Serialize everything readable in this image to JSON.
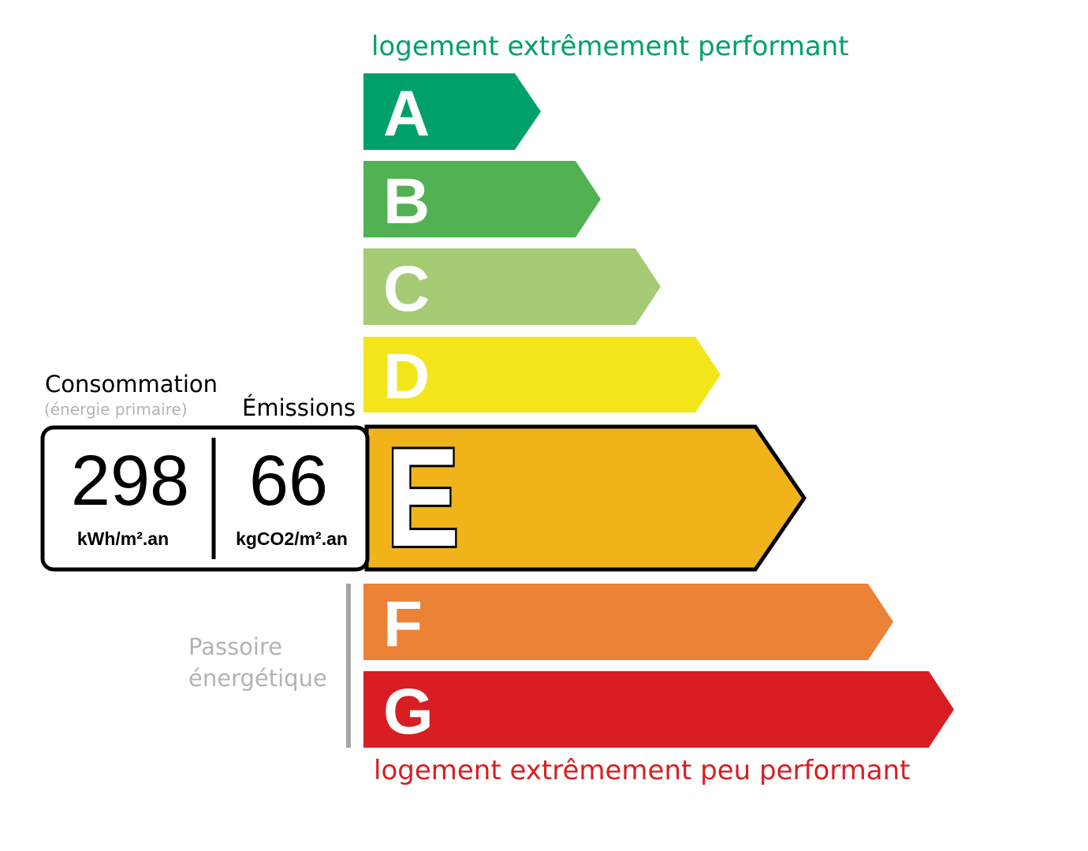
{
  "top_label": "logement extrêmement performant",
  "bottom_label": "logement extrêmement peu performant",
  "consumption": {
    "title": "Consommation",
    "subtitle": "(énergie primaire)",
    "value": "298",
    "unit": "kWh/m².an"
  },
  "emissions": {
    "title": "Émissions",
    "value": "66",
    "unit": "kgCO2/m².an"
  },
  "passoire_label": [
    "Passoire",
    "énergétique"
  ],
  "current_class": "E",
  "classes": [
    {
      "letter": "A",
      "color": "#00a06b"
    },
    {
      "letter": "B",
      "color": "#52b153"
    },
    {
      "letter": "C",
      "color": "#a5cc74"
    },
    {
      "letter": "D",
      "color": "#f2e61b"
    },
    {
      "letter": "E",
      "color": "#f0b41a"
    },
    {
      "letter": "F",
      "color": "#eb8235"
    },
    {
      "letter": "G",
      "color": "#d81e22"
    }
  ],
  "colors": {
    "top_label": "#00a06b",
    "bottom_label": "#d81e22",
    "muted": "#b3b3b3"
  }
}
